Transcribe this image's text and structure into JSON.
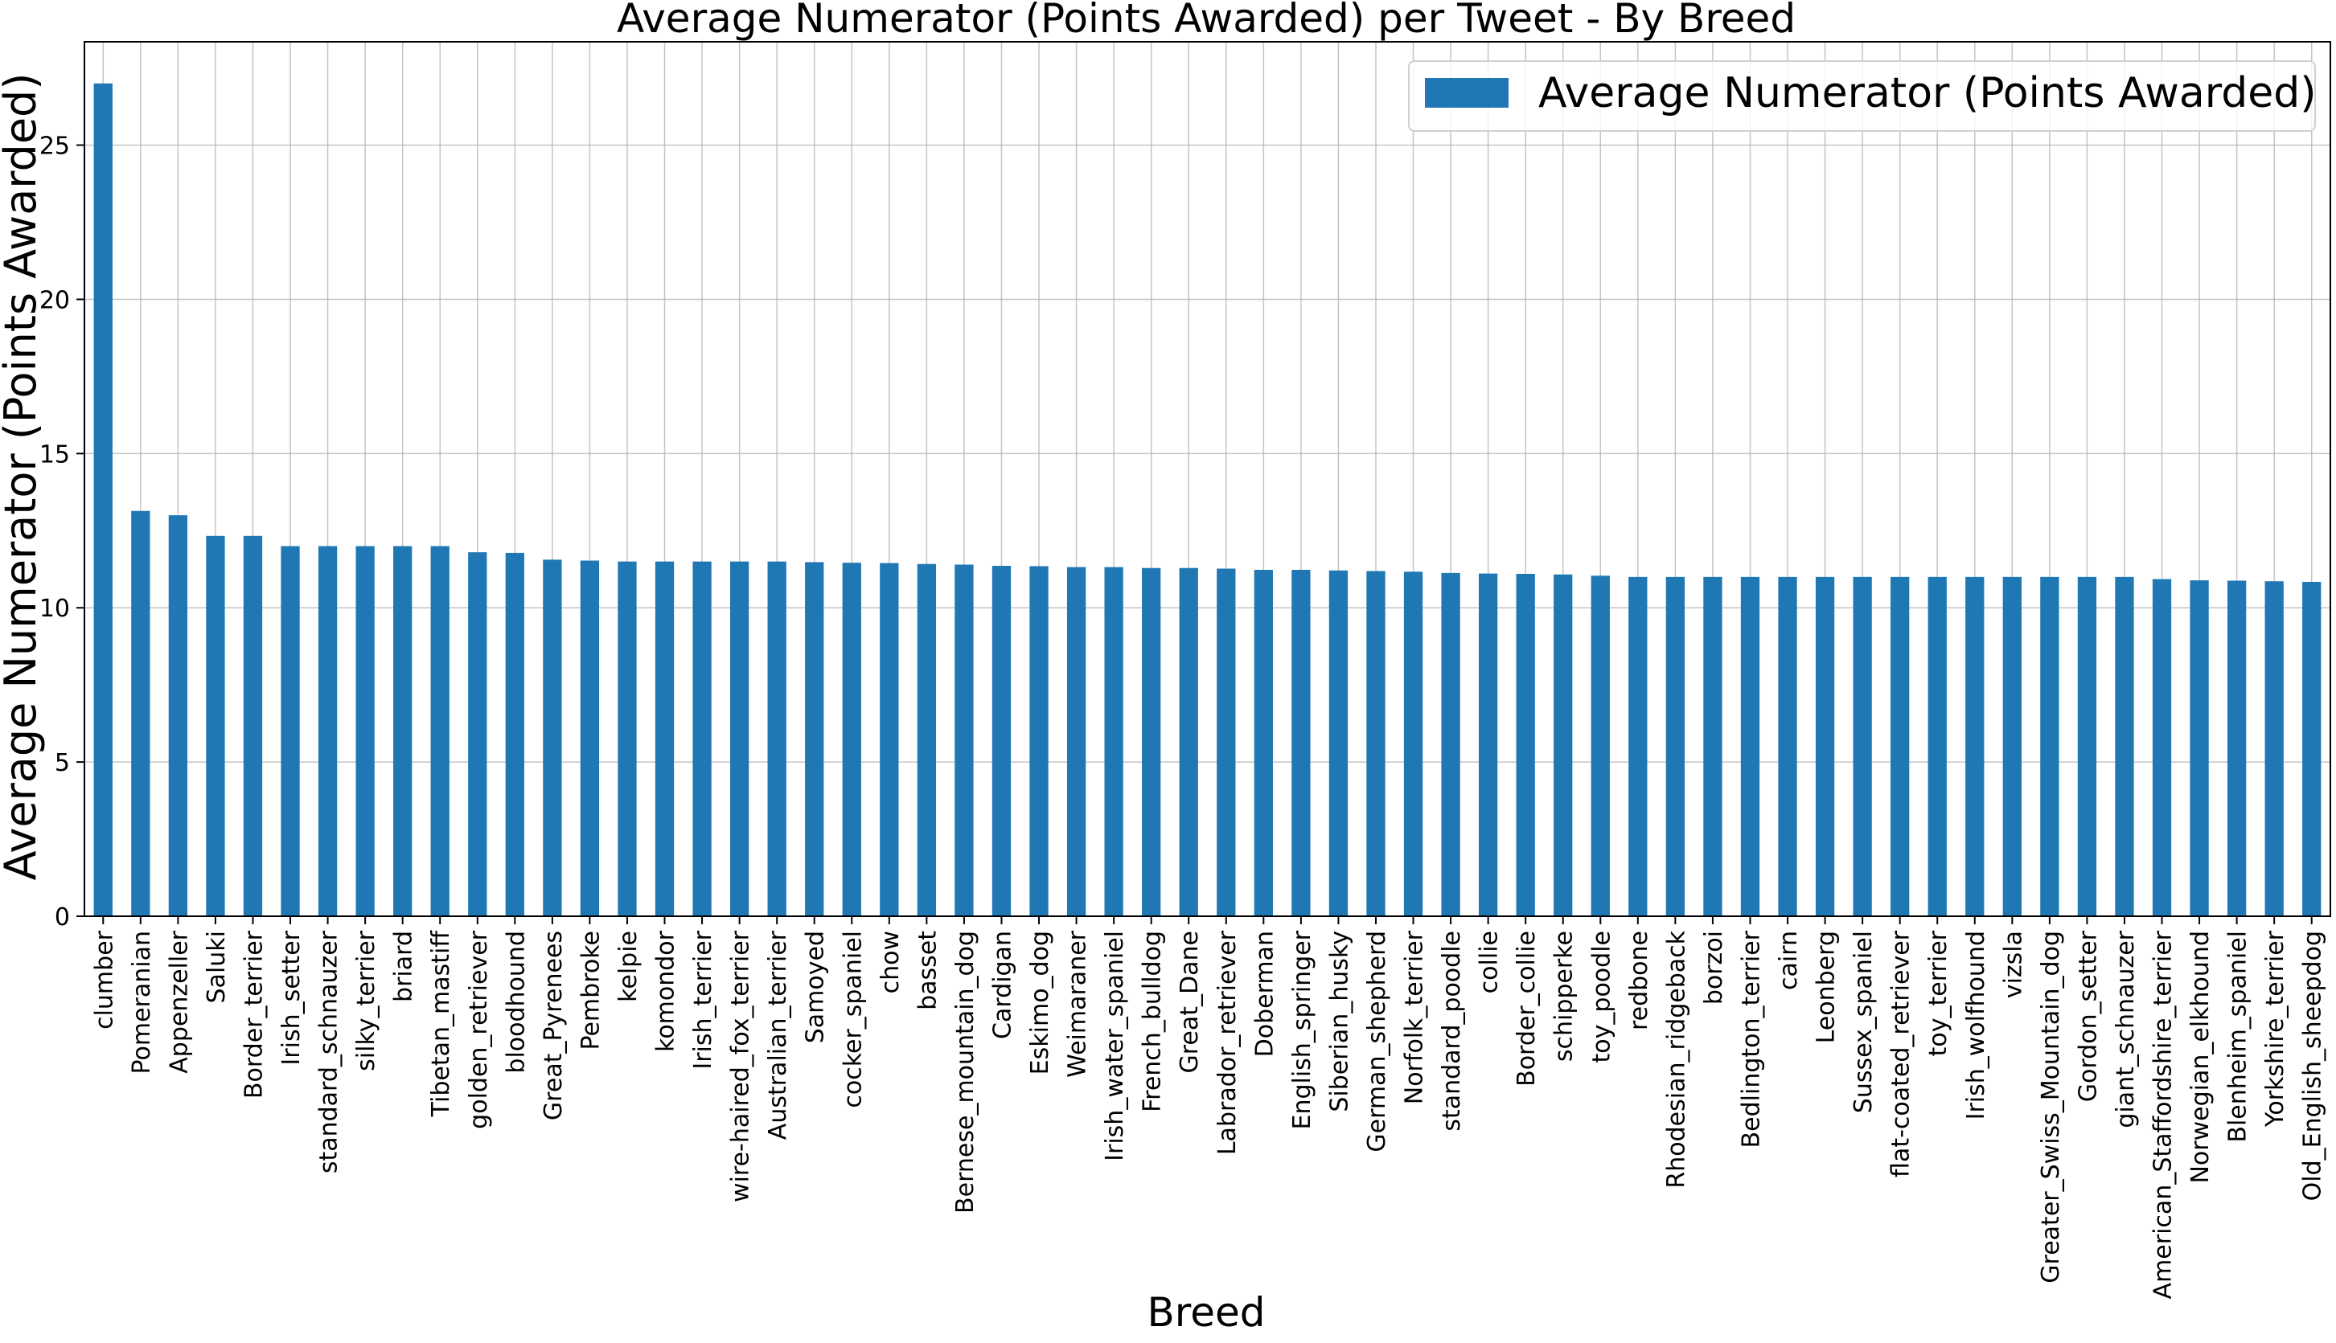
{
  "chart_data": {
    "type": "bar",
    "title": "Average Numerator (Points Awarded) per Tweet - By Breed",
    "xlabel": "Breed",
    "ylabel": "Average Numerator (Points Awarded)",
    "ylim": [
      0,
      28.35
    ],
    "yticks": [
      0,
      5,
      10,
      15,
      20,
      25
    ],
    "grid": true,
    "legend_position": "top-right",
    "colors": {
      "bar": "#1f77b4",
      "grid": "#b0b0b0",
      "axis": "#000000"
    },
    "categories": [
      "clumber",
      "Pomeranian",
      "Appenzeller",
      "Saluki",
      "Border_terrier",
      "Irish_setter",
      "standard_schnauzer",
      "silky_terrier",
      "briard",
      "Tibetan_mastiff",
      "golden_retriever",
      "bloodhound",
      "Great_Pyrenees",
      "Pembroke",
      "kelpie",
      "komondor",
      "Irish_terrier",
      "wire-haired_fox_terrier",
      "Australian_terrier",
      "Samoyed",
      "cocker_spaniel",
      "chow",
      "basset",
      "Bernese_mountain_dog",
      "Cardigan",
      "Eskimo_dog",
      "Weimaraner",
      "Irish_water_spaniel",
      "French_bulldog",
      "Great_Dane",
      "Labrador_retriever",
      "Doberman",
      "English_springer",
      "Siberian_husky",
      "German_shepherd",
      "Norfolk_terrier",
      "standard_poodle",
      "collie",
      "Border_collie",
      "schipperke",
      "toy_poodle",
      "redbone",
      "Rhodesian_ridgeback",
      "borzoi",
      "Bedlington_terrier",
      "cairn",
      "Leonberg",
      "Sussex_spaniel",
      "flat-coated_retriever",
      "toy_terrier",
      "Irish_wolfhound",
      "vizsla",
      "Greater_Swiss_Mountain_dog",
      "Gordon_setter",
      "giant_schnauzer",
      "American_Staffordshire_terrier",
      "Norwegian_elkhound",
      "Blenheim_spaniel",
      "Yorkshire_terrier",
      "Old_English_sheepdog"
    ],
    "series": [
      {
        "name": "Average Numerator (Points Awarded)",
        "values": [
          27.0,
          13.14,
          13.0,
          12.33,
          12.33,
          12.0,
          12.0,
          12.0,
          12.0,
          12.0,
          11.8,
          11.78,
          11.56,
          11.53,
          11.5,
          11.5,
          11.5,
          11.5,
          11.5,
          11.48,
          11.46,
          11.45,
          11.42,
          11.4,
          11.36,
          11.35,
          11.32,
          11.32,
          11.29,
          11.29,
          11.27,
          11.23,
          11.23,
          11.21,
          11.19,
          11.17,
          11.13,
          11.11,
          11.1,
          11.08,
          11.04,
          11.0,
          11.0,
          11.0,
          11.0,
          11.0,
          11.0,
          11.0,
          11.0,
          11.0,
          11.0,
          11.0,
          11.0,
          11.0,
          11.0,
          10.93,
          10.89,
          10.88,
          10.86,
          10.84
        ]
      }
    ]
  }
}
